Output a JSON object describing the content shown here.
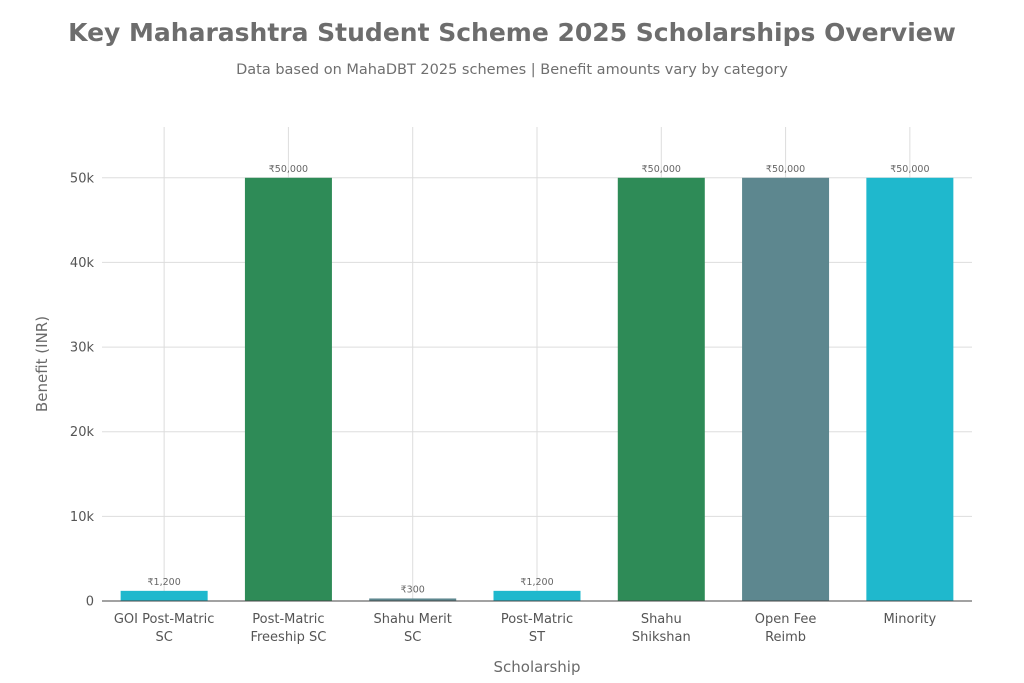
{
  "chart_data": {
    "type": "bar",
    "title": "Key Maharashtra Student Scheme 2025 Scholarships Overview",
    "subtitle": "Data based on MahaDBT 2025 schemes | Benefit amounts vary by category",
    "xlabel": "Scholarship",
    "ylabel": "Benefit (INR)",
    "ylim": [
      0,
      56000
    ],
    "yticks": [
      0,
      10000,
      20000,
      30000,
      40000,
      50000
    ],
    "ytick_labels": [
      "0",
      "10k",
      "20k",
      "30k",
      "40k",
      "50k"
    ],
    "grid": true,
    "categories": [
      [
        "GOI Post-Matric",
        "SC"
      ],
      [
        "Post-Matric",
        "Freeship SC"
      ],
      [
        "Shahu Merit",
        "SC"
      ],
      [
        "Post-Matric",
        "ST"
      ],
      [
        "Shahu",
        "Shikshan"
      ],
      [
        "Open Fee",
        "Reimb"
      ],
      [
        "Minority"
      ]
    ],
    "values": [
      1200,
      50000,
      300,
      1200,
      50000,
      50000,
      50000
    ],
    "data_labels": [
      "₹1,200",
      "₹50,000",
      "₹300",
      "₹1,200",
      "₹50,000",
      "₹50,000",
      "₹50,000"
    ],
    "colors": [
      "#1fb8cd",
      "#2e8b57",
      "#5d878f",
      "#1fb8cd",
      "#2e8b57",
      "#5d878f",
      "#1fb8cd"
    ]
  }
}
